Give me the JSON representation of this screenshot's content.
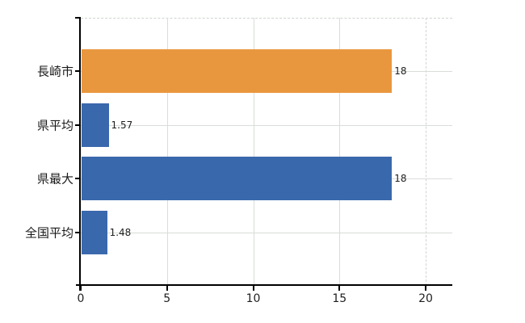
{
  "chart_data": {
    "type": "bar",
    "orientation": "horizontal",
    "title": "",
    "xlabel": "",
    "ylabel": "",
    "categories": [
      "長崎市",
      "県平均",
      "県最大",
      "全国平均"
    ],
    "values": [
      18,
      1.57,
      18,
      1.48
    ],
    "value_labels": [
      "18",
      "1.57",
      "18",
      "1.48"
    ],
    "bar_colors": [
      "#E9973F",
      "#3A68AC",
      "#3A68AC",
      "#3A68AC"
    ],
    "xticks": [
      0,
      5,
      10,
      15,
      20
    ],
    "xtick_labels": [
      "0",
      "5",
      "10",
      "15",
      "20"
    ],
    "xlim": [
      0,
      21.5
    ],
    "grid": true,
    "legend": false,
    "colors": {
      "orange_series": "#E9973F",
      "blue_series": "#3A68AC",
      "gridline": "#D9DDD9",
      "dashed_gridline": "#CFD6CF",
      "axis": "#000000",
      "text": "#1A1A1A"
    }
  }
}
